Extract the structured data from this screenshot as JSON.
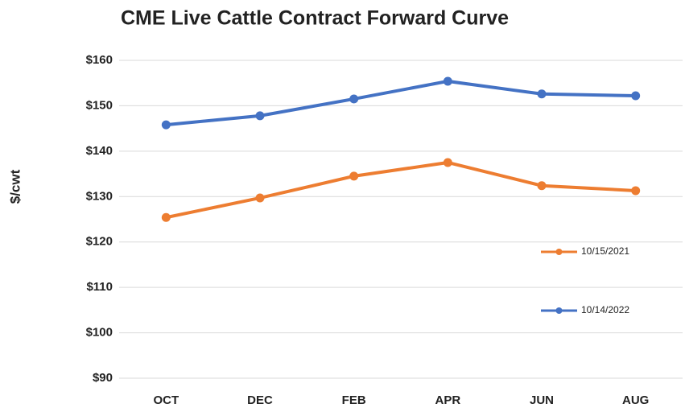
{
  "chart_data": {
    "type": "line",
    "title": "CME Live Cattle Contract Forward Curve",
    "y_label": "$/cwt",
    "categories": [
      "OCT",
      "DEC",
      "FEB",
      "APR",
      "JUN",
      "AUG"
    ],
    "series": [
      {
        "name": "10/15/2021",
        "color": "#ed7d31",
        "values": [
          125.4,
          129.7,
          134.5,
          137.5,
          132.4,
          131.3
        ]
      },
      {
        "name": "10/14/2022",
        "color": "#4472c4",
        "values": [
          145.8,
          147.8,
          151.5,
          155.4,
          152.6,
          152.2
        ]
      }
    ],
    "ylim": [
      90,
      160
    ],
    "yticks": [
      {
        "value": 90,
        "label": "$90"
      },
      {
        "value": 100,
        "label": "$100"
      },
      {
        "value": 110,
        "label": "$110"
      },
      {
        "value": 120,
        "label": "$120"
      },
      {
        "value": 130,
        "label": "$130"
      },
      {
        "value": 140,
        "label": "$140"
      },
      {
        "value": 150,
        "label": "$150"
      },
      {
        "value": 160,
        "label": "$160"
      }
    ],
    "grid": true
  }
}
